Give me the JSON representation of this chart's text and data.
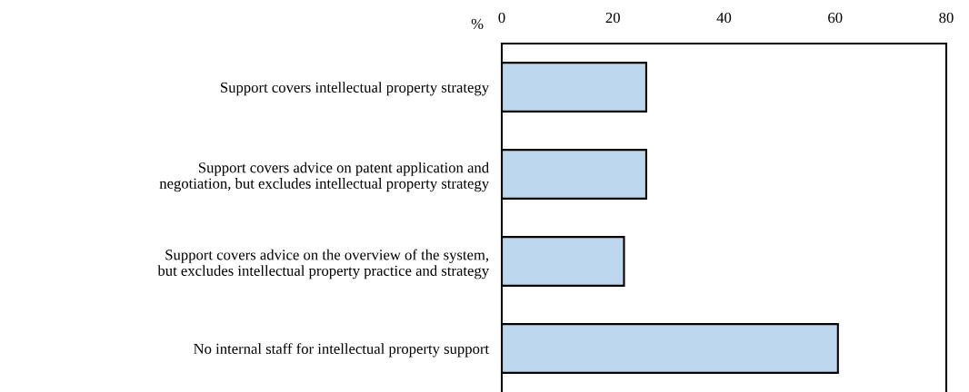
{
  "chart_data": {
    "type": "bar",
    "orientation": "horizontal",
    "xlabel": "%",
    "categories": [
      "Support covers intellectual property strategy",
      "Support covers advice on patent application and\nnegotiation, but excludes intellectual property strategy",
      "Support covers advice on the overview of the system,\nbut excludes intellectual property practice and strategy",
      "No internal staff for intellectual property support"
    ],
    "values": [
      26,
      26,
      22,
      60.5
    ],
    "color": "#bdd7ee",
    "xlim": [
      0,
      80
    ],
    "xticks": [
      0,
      20,
      40,
      60,
      80
    ],
    "grid": false,
    "legend": false
  }
}
